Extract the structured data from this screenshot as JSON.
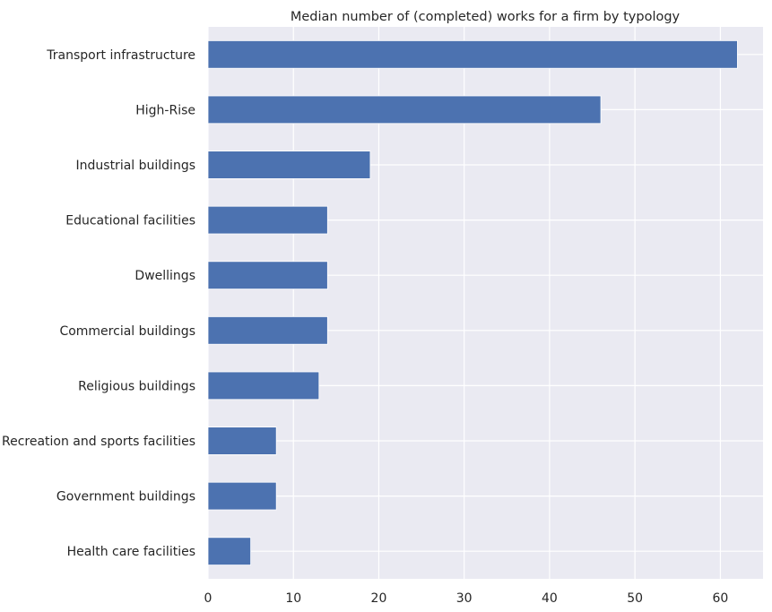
{
  "chart_data": {
    "type": "bar",
    "orientation": "horizontal",
    "title": "Median number of (completed) works for a firm by typology",
    "xlabel": "",
    "ylabel": "",
    "xlim": [
      0,
      65
    ],
    "xticks": [
      "0",
      "10",
      "20",
      "30",
      "40",
      "50",
      "60"
    ],
    "grid": true,
    "legend": "none",
    "categories": [
      "Transport infrastructure",
      "High-Rise",
      "Industrial buildings",
      "Educational facilities",
      "Dwellings",
      "Commercial buildings",
      "Religious buildings",
      "Recreation and sports facilities",
      "Government buildings",
      "Health care facilities"
    ],
    "values": [
      62,
      46,
      19,
      14,
      14,
      14,
      13,
      8,
      8,
      5
    ],
    "colors": {
      "bar": "#4c72b0",
      "background": "#eaeaf2",
      "grid": "#ffffff",
      "text": "#262626"
    }
  }
}
